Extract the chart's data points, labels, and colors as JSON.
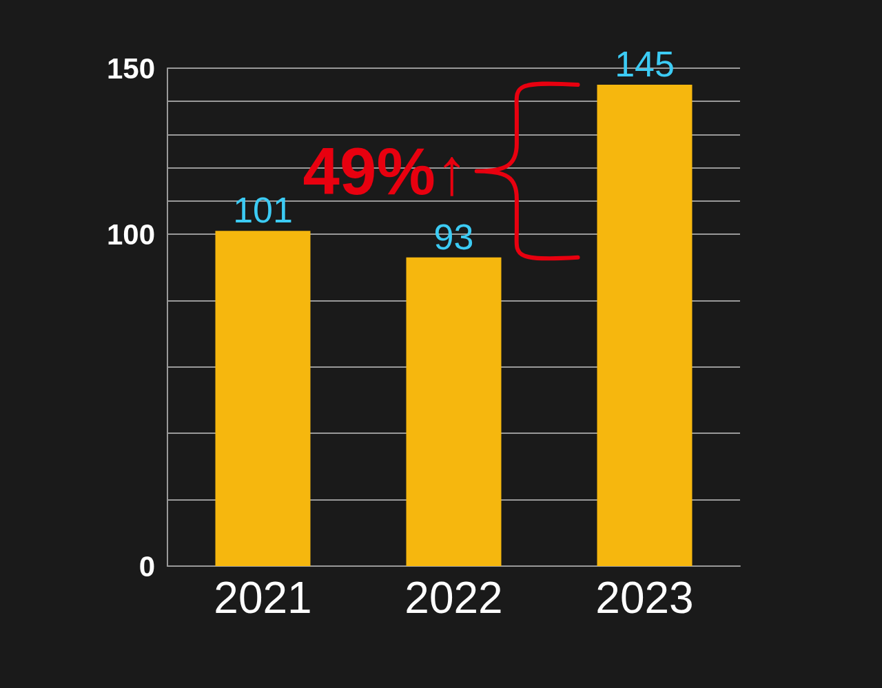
{
  "chart_data": {
    "type": "bar",
    "categories": [
      "2021",
      "2022",
      "2023"
    ],
    "values": [
      101,
      93,
      145
    ],
    "color": "#f6b70e",
    "ylim": [
      0,
      150
    ],
    "yticks": [
      0,
      {
        "value": 20,
        "label": null
      },
      {
        "value": 40,
        "label": null
      },
      {
        "value": 60,
        "label": null
      },
      {
        "value": 80,
        "label": null
      },
      100,
      {
        "value": 110,
        "label": null
      },
      {
        "value": 120,
        "label": null
      },
      {
        "value": 130,
        "label": null
      },
      {
        "value": 140,
        "label": null
      },
      150
    ],
    "grid": "y",
    "data_labels": true,
    "annotations": [
      "49%↑"
    ]
  }
}
